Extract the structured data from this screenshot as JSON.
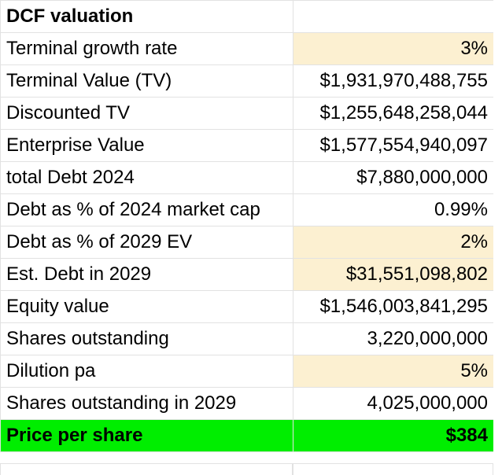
{
  "table": {
    "header": {
      "label": "DCF valuation",
      "value": ""
    },
    "rows": [
      {
        "label": "Terminal growth rate",
        "value": "3%",
        "input": true
      },
      {
        "label": "Terminal Value (TV)",
        "value": "$1,931,970,488,755",
        "input": false
      },
      {
        "label": "Discounted TV",
        "value": "$1,255,648,258,044",
        "input": false
      },
      {
        "label": "Enterprise Value",
        "value": "$1,577,554,940,097",
        "input": false
      },
      {
        "label": "total Debt 2024",
        "value": "$7,880,000,000",
        "input": false
      },
      {
        "label": "Debt as % of 2024 market cap",
        "value": "0.99%",
        "input": false
      },
      {
        "label": "Debt as % of 2029 EV",
        "value": "2%",
        "input": true
      },
      {
        "label": "Est. Debt in 2029",
        "value": "$31,551,098,802",
        "input": true
      },
      {
        "label": "Equity value",
        "value": "$1,546,003,841,295",
        "input": false
      },
      {
        "label": "Shares outstanding",
        "value": "3,220,000,000",
        "input": false
      },
      {
        "label": "Dilution pa",
        "value": "5%",
        "input": true
      },
      {
        "label": "Shares outstanding in 2029",
        "value": "4,025,000,000",
        "input": false
      }
    ],
    "total": {
      "label": "Price per share",
      "value": "$384"
    }
  },
  "colors": {
    "input_fill": "#fcf0d1",
    "total_fill": "#00ee00",
    "gridline": "#e2e2e2"
  }
}
